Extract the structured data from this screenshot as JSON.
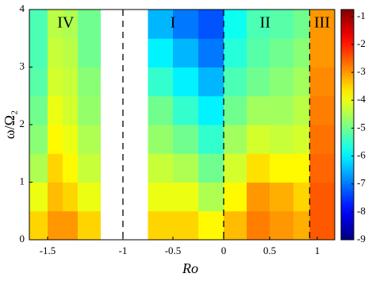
{
  "chart_data": {
    "type": "heatmap",
    "xlabel": "Ro",
    "ylabel": "ω/Ω₂",
    "xlim": [
      -1.62,
      1.18
    ],
    "ylim": [
      0,
      4
    ],
    "xticks": [
      -1.5,
      -1,
      -0.5,
      0,
      0.5,
      1
    ],
    "yticks": [
      0,
      1,
      2,
      3,
      4
    ],
    "x_bins": [
      -1.62,
      -1.5,
      -1.4,
      -1.3,
      -1.15,
      -0.75,
      -0.5,
      -0.25,
      0,
      0.25,
      0.5,
      0.75,
      0.92,
      1.18
    ],
    "y_bins": [
      0,
      0.5,
      1,
      1.5,
      2,
      2.5,
      3,
      3.5,
      4
    ],
    "z": [
      [
        -3.5,
        -3,
        -3,
        -3.5,
        null,
        -3.5,
        -3.5,
        -3.8,
        -3.3,
        -2.8,
        -3,
        -3.2,
        -2.5
      ],
      [
        -4,
        -3.3,
        -3.5,
        -4,
        null,
        -4,
        -4,
        -4.5,
        -3.8,
        -3,
        -3.2,
        -3.5,
        -2.5
      ],
      [
        -4.5,
        -3.5,
        -3.8,
        -4.3,
        null,
        -4.3,
        -4.5,
        -5,
        -4.2,
        -3.6,
        -3.8,
        -3.8,
        -2.6
      ],
      [
        -4.8,
        -3.8,
        -4,
        -4.5,
        null,
        -4.7,
        -5,
        -5.5,
        -4.6,
        -4.2,
        -4.3,
        -4.2,
        -2.7
      ],
      [
        -5,
        -4,
        -4.2,
        -4.7,
        null,
        -5,
        -5.5,
        -6,
        -5,
        -4.6,
        -4.6,
        -4.4,
        -2.8
      ],
      [
        -5.2,
        -4.2,
        -4.3,
        -4.8,
        null,
        -5.5,
        -6,
        -6.5,
        -5.3,
        -5,
        -4.8,
        -4.6,
        -2.9
      ],
      [
        -5.3,
        -4.3,
        -4.4,
        -5,
        null,
        -6,
        -6.5,
        -7,
        -5.6,
        -5.2,
        -5,
        -4.8,
        -3
      ],
      [
        -5.3,
        -4.4,
        -4.5,
        -5,
        null,
        -6.5,
        -7,
        -7.3,
        -5.8,
        -5.3,
        -5.2,
        -5,
        -3
      ]
    ],
    "dashed_lines": [
      -1,
      0,
      0.92
    ],
    "regions": [
      {
        "label": "IV",
        "x": -1.38
      },
      {
        "label": "I",
        "x": -0.5
      },
      {
        "label": "II",
        "x": 0.45
      },
      {
        "label": "III",
        "x": 1.05
      }
    ],
    "colorbar": {
      "clim": [
        -9,
        -0.75
      ],
      "ticks": [
        -1,
        -2,
        -3,
        -4,
        -5,
        -6,
        -7,
        -8,
        -9
      ]
    }
  }
}
